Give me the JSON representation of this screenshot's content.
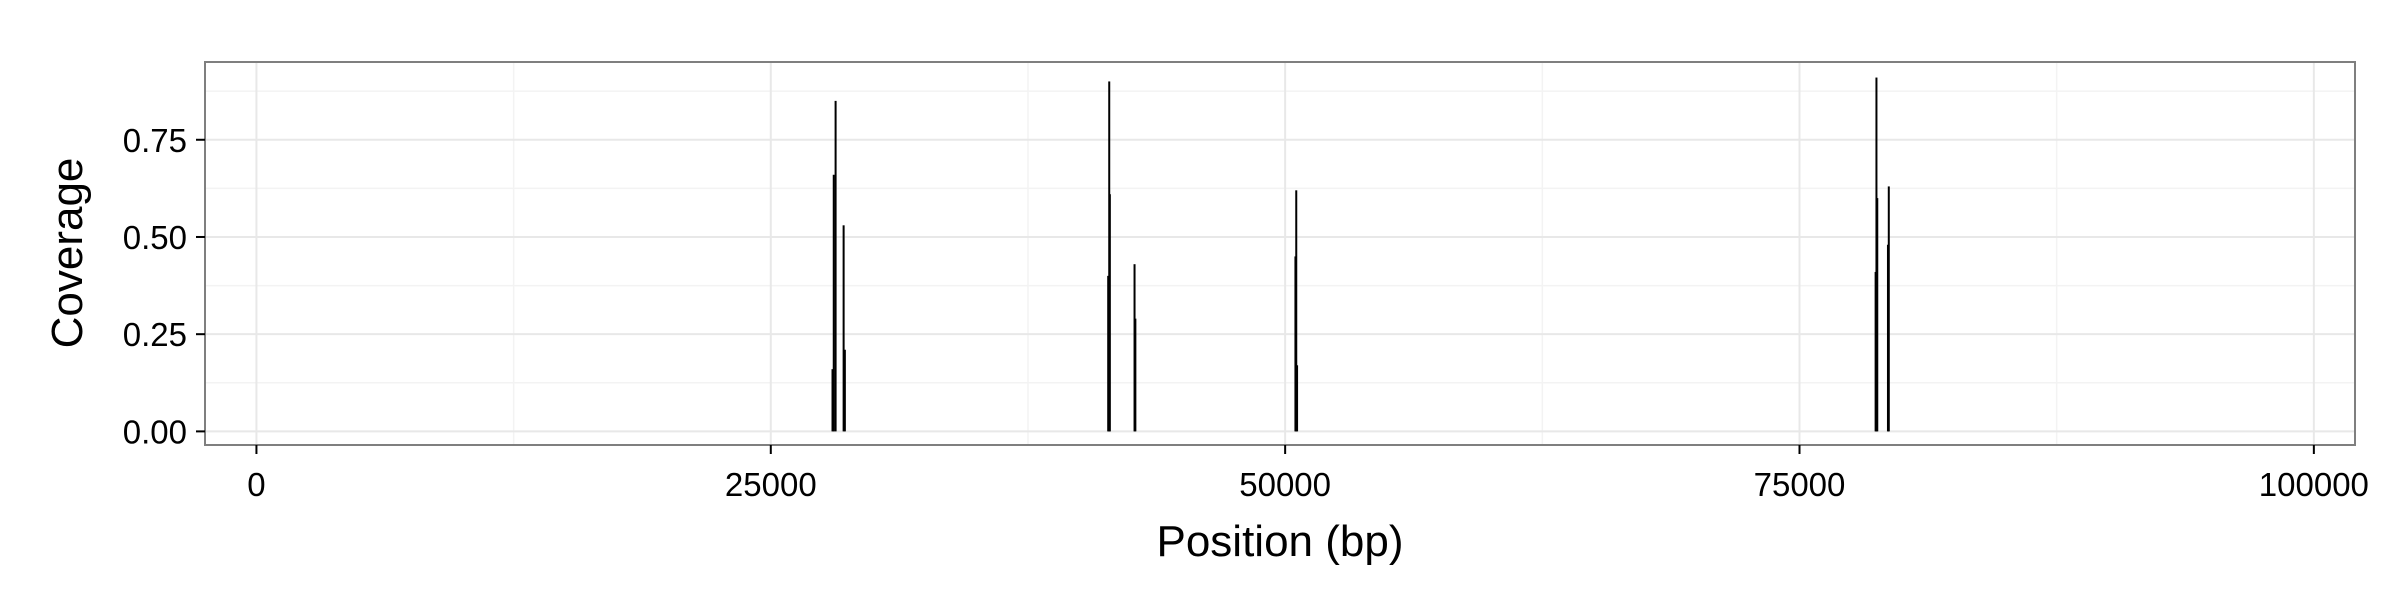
{
  "chart_data": {
    "type": "bar",
    "title": "",
    "xlabel": "Position (bp)",
    "ylabel": "Coverage",
    "xlim": [
      -2500,
      102000
    ],
    "ylim": [
      -0.035,
      0.95
    ],
    "x_ticks": [
      0,
      25000,
      50000,
      75000,
      100000
    ],
    "x_tick_labels": [
      "0",
      "25000",
      "50000",
      "75000",
      "100000"
    ],
    "y_ticks": [
      0.0,
      0.25,
      0.5,
      0.75
    ],
    "y_tick_labels": [
      "0.00",
      "0.25",
      "0.50",
      "0.75"
    ],
    "grid": true,
    "legend": "none",
    "bar_color": "#000000",
    "panel_border_color": "#7f7f7f",
    "grid_major_color": "#e8e8e8",
    "grid_minor_color": "#f3f3f3",
    "x": [
      28000,
      28060,
      28150,
      28540,
      28600,
      41400,
      41450,
      41480,
      42680,
      42720,
      50500,
      50540,
      50580,
      78700,
      78740,
      78780,
      79300,
      79340
    ],
    "values": [
      0.16,
      0.66,
      0.85,
      0.53,
      0.21,
      0.4,
      0.9,
      0.61,
      0.43,
      0.29,
      0.45,
      0.62,
      0.17,
      0.41,
      0.91,
      0.6,
      0.48,
      0.63
    ]
  }
}
